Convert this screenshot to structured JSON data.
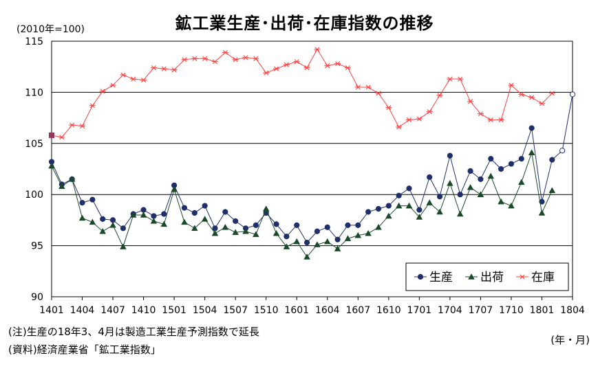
{
  "chart_data": {
    "type": "line",
    "title": "鉱工業生産･出荷･在庫指数の推移",
    "unit_label": "(2010年=100)",
    "xunit_label": "(年・月)",
    "notes": [
      "(注)生産の18年3、4月は製造工業生産予測指数で延長",
      "(資料)経済産業省「鉱工業指数」"
    ],
    "ylim": [
      90,
      115
    ],
    "y_ticks": [
      90,
      95,
      100,
      105,
      110,
      115
    ],
    "x_tick_labels": [
      "1401",
      "1404",
      "1407",
      "1410",
      "1501",
      "1504",
      "1507",
      "1510",
      "1601",
      "1604",
      "1607",
      "1610",
      "1701",
      "1704",
      "1707",
      "1710",
      "1801",
      "1804"
    ],
    "grid": "horizontal",
    "legend_position": "bottom-right",
    "series": [
      {
        "name": "生産",
        "color": "#1f2f6b",
        "marker": "circle",
        "values": [
          103.2,
          101.0,
          101.5,
          99.2,
          99.5,
          97.6,
          97.5,
          96.7,
          98.1,
          98.5,
          97.9,
          98.1,
          100.9,
          98.7,
          98.2,
          98.9,
          96.7,
          98.3,
          97.4,
          96.7,
          97.0,
          98.2,
          97.1,
          95.9,
          97.0,
          95.3,
          96.4,
          96.8,
          95.6,
          97.0,
          97.0,
          98.3,
          98.6,
          98.9,
          99.9,
          100.6,
          98.5,
          101.7,
          99.8,
          103.8,
          100.0,
          102.3,
          101.5,
          103.5,
          102.5,
          103.0,
          103.5,
          106.5,
          99.3,
          103.4
        ],
        "forecast_values": [
          104.3,
          109.8
        ],
        "forecast_color": "#ffffff"
      },
      {
        "name": "出荷",
        "color": "#1a4a2a",
        "marker": "triangle",
        "values": [
          102.8,
          100.8,
          101.5,
          97.7,
          97.3,
          96.4,
          97.0,
          94.9,
          98.0,
          98.0,
          97.4,
          97.1,
          100.5,
          97.3,
          96.7,
          97.6,
          96.2,
          96.8,
          96.3,
          96.4,
          96.1,
          98.6,
          96.2,
          94.9,
          95.4,
          93.9,
          95.1,
          95.4,
          94.7,
          95.7,
          96.0,
          96.2,
          96.8,
          97.9,
          98.9,
          98.9,
          97.8,
          99.2,
          98.3,
          101.1,
          98.1,
          100.7,
          100.0,
          101.8,
          99.3,
          98.9,
          101.2,
          104.1,
          98.2,
          100.4
        ]
      },
      {
        "name": "在庫",
        "color": "#ff4040",
        "marker": "asterisk",
        "first_point_color": "#993355",
        "values": [
          105.8,
          105.6,
          106.8,
          106.7,
          108.7,
          110.1,
          110.7,
          111.7,
          111.3,
          111.2,
          112.4,
          112.3,
          112.2,
          113.2,
          113.3,
          113.3,
          113.0,
          113.9,
          113.2,
          113.4,
          113.3,
          111.9,
          112.3,
          112.7,
          113.0,
          112.4,
          114.2,
          112.6,
          112.8,
          112.4,
          110.5,
          110.5,
          109.9,
          108.5,
          106.6,
          107.3,
          107.4,
          108.1,
          109.7,
          111.3,
          111.3,
          109.1,
          107.9,
          107.3,
          107.3,
          110.7,
          109.8,
          109.5,
          108.9,
          109.9
        ]
      }
    ]
  }
}
